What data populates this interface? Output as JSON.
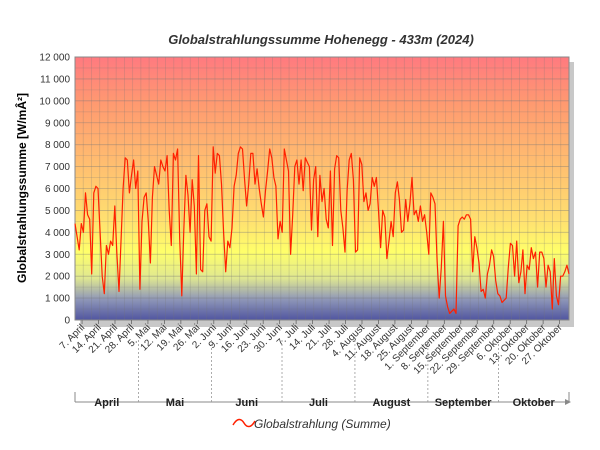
{
  "chart_data": {
    "type": "line",
    "title": "Globalstrahlungssumme Hohenegg - 433m (2024)",
    "ylabel": "Globalstrahlungssumme [W/mÂ²]",
    "ylim": [
      0,
      12000
    ],
    "y_ticks": [
      "0",
      "1 000",
      "2 000",
      "3 000",
      "4 000",
      "5 000",
      "6 000",
      "7 000",
      "8 000",
      "9 000",
      "10 000",
      "11 000",
      "12 000"
    ],
    "x_ticks": [
      "7. April",
      "14. April",
      "21. April",
      "28. April",
      "5. Mai",
      "12. Mai",
      "19. Mai",
      "26. Mai",
      "2. Juni",
      "9. Juni",
      "16. Juni",
      "23. Juni",
      "30. Juni",
      "7. Juli",
      "14. Juli",
      "21. Juli",
      "28. Juli",
      "4. August",
      "11. August",
      "18. August",
      "25. August",
      "1. September",
      "8. September",
      "15. September",
      "22. September",
      "29. September",
      "6. Oktober",
      "13. Oktober",
      "20. Oktober",
      "27. Oktober"
    ],
    "months": [
      "April",
      "Mai",
      "Juni",
      "Juli",
      "August",
      "September",
      "Oktober"
    ],
    "grid": true,
    "legend_position": "bottom",
    "series_color": "#ff2000",
    "series": [
      {
        "name": "Globalstrahlung (Summe)",
        "x_start": "2024-04-04",
        "x_end": "2024-10-31",
        "values": [
          4400,
          3800,
          3200,
          4400,
          4000,
          5800,
          4800,
          4600,
          2100,
          5800,
          6100,
          6000,
          4000,
          2000,
          1200,
          3400,
          3000,
          3600,
          3400,
          5200,
          3000,
          1300,
          3700,
          6000,
          7400,
          7300,
          5800,
          6600,
          7300,
          6000,
          6800,
          1400,
          4500,
          5600,
          5800,
          4500,
          2600,
          5600,
          7000,
          6600,
          6200,
          7300,
          7000,
          6800,
          7500,
          5000,
          3400,
          7600,
          7300,
          7800,
          3700,
          1100,
          4100,
          6600,
          5700,
          4000,
          6400,
          5200,
          2100,
          7500,
          2300,
          2200,
          5000,
          5300,
          3800,
          3600,
          7900,
          6700,
          7600,
          7500,
          6200,
          4000,
          2200,
          3600,
          3300,
          4200,
          6100,
          6600,
          7600,
          7900,
          7800,
          6400,
          5200,
          6200,
          7600,
          7600,
          6200,
          6900,
          6000,
          5300,
          4700,
          5900,
          6800,
          7800,
          7400,
          6500,
          6100,
          3700,
          4500,
          4000,
          7800,
          7300,
          6800,
          3000,
          4800,
          7000,
          7300,
          6200,
          7300,
          5900,
          7400,
          7200,
          7000,
          4100,
          6400,
          7000,
          3800,
          6600,
          5400,
          6000,
          4600,
          4200,
          6800,
          3400,
          6900,
          7500,
          7400,
          5000,
          4200,
          3100,
          5900,
          7300,
          7600,
          6400,
          3100,
          3200,
          7400,
          7100,
          5400,
          5800,
          5000,
          5300,
          6500,
          6100,
          6500,
          5000,
          3300,
          5000,
          4700,
          2800,
          3600,
          4500,
          3800,
          5800,
          6300,
          5500,
          4000,
          4100,
          5500,
          4500,
          5300,
          6500,
          4800,
          5000,
          4500,
          5200,
          4500,
          4800,
          4000,
          3000,
          5800,
          5600,
          5300,
          2700,
          1000,
          2400,
          4500,
          1100,
          600,
          300,
          400,
          500,
          300,
          4300,
          4600,
          4700,
          4600,
          4800,
          4800,
          4600,
          2200,
          3800,
          3300,
          2600,
          1300,
          1400,
          1000,
          2100,
          2500,
          3200,
          2900,
          1800,
          1200,
          1100,
          800,
          900,
          1000,
          2400,
          3500,
          3400,
          2000,
          3600,
          1700,
          2200,
          3200,
          1200,
          2500,
          2300,
          3300,
          2800,
          3100,
          1500,
          3100,
          3100,
          2800,
          1500,
          2500,
          2200,
          500,
          2800,
          1100,
          700,
          2000,
          2000,
          2200,
          2500,
          2100
        ]
      }
    ]
  }
}
